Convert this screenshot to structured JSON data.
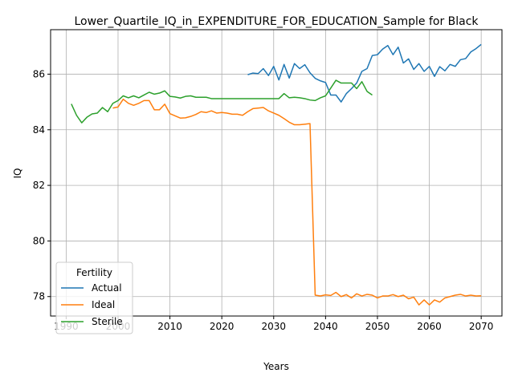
{
  "chart_data": {
    "type": "line",
    "title": "Lower_Quartile_IQ_in_EXPENDITURE_FOR_EDUCATION_Sample for Black",
    "xlabel": "Years",
    "ylabel": "IQ",
    "xlim": [
      1987,
      2074
    ],
    "ylim": [
      77.3,
      87.6
    ],
    "xticks": [
      1990,
      2000,
      2010,
      2020,
      2030,
      2040,
      2050,
      2060,
      2070
    ],
    "yticks": [
      78,
      80,
      82,
      84,
      86
    ],
    "grid": true,
    "legend": {
      "title": "Fertility",
      "placement": "lower-left"
    },
    "colors": {
      "Actual": "#1f77b4",
      "Ideal": "#ff7f0e",
      "Sterile": "#2ca02c"
    },
    "series": [
      {
        "name": "Actual",
        "x": [
          2025,
          2026,
          2027,
          2028,
          2029,
          2030,
          2031,
          2032,
          2033,
          2034,
          2035,
          2036,
          2037,
          2038,
          2039,
          2040,
          2041,
          2042,
          2043,
          2044,
          2045,
          2046,
          2047,
          2048,
          2049,
          2050,
          2051,
          2052,
          2053,
          2054,
          2055,
          2056,
          2057,
          2058,
          2059,
          2060,
          2061,
          2062,
          2063,
          2064,
          2065,
          2066,
          2067,
          2068,
          2069,
          2070
        ],
        "values": [
          85.98,
          86.04,
          86.02,
          86.2,
          85.95,
          86.28,
          85.79,
          86.35,
          85.86,
          86.38,
          86.2,
          86.34,
          86.05,
          85.85,
          85.76,
          85.7,
          85.25,
          85.25,
          85.0,
          85.3,
          85.48,
          85.68,
          86.1,
          86.2,
          86.67,
          86.7,
          86.9,
          87.03,
          86.7,
          86.97,
          86.4,
          86.55,
          86.17,
          86.38,
          86.1,
          86.28,
          85.92,
          86.27,
          86.12,
          86.35,
          86.28,
          86.52,
          86.56,
          86.8,
          86.92,
          87.07
        ]
      },
      {
        "name": "Ideal",
        "x": [
          1999,
          2000,
          2001,
          2002,
          2003,
          2004,
          2005,
          2006,
          2007,
          2008,
          2009,
          2010,
          2011,
          2012,
          2013,
          2014,
          2015,
          2016,
          2017,
          2018,
          2019,
          2020,
          2021,
          2022,
          2023,
          2024,
          2025,
          2026,
          2027,
          2028,
          2029,
          2030,
          2031,
          2032,
          2033,
          2034,
          2035,
          2036,
          2037,
          2038,
          2039,
          2040,
          2041,
          2042,
          2043,
          2044,
          2045,
          2046,
          2047,
          2048,
          2049,
          2050,
          2051,
          2052,
          2053,
          2054,
          2055,
          2056,
          2057,
          2058,
          2059,
          2060,
          2061,
          2062,
          2063,
          2064,
          2065,
          2066,
          2067,
          2068,
          2069,
          2070
        ],
        "values": [
          84.78,
          84.82,
          85.1,
          84.95,
          84.88,
          84.95,
          85.05,
          85.05,
          84.72,
          84.72,
          84.92,
          84.58,
          84.5,
          84.42,
          84.43,
          84.48,
          84.55,
          84.65,
          84.62,
          84.68,
          84.6,
          84.62,
          84.6,
          84.56,
          84.56,
          84.52,
          84.65,
          84.76,
          84.78,
          84.8,
          84.68,
          84.6,
          84.52,
          84.4,
          84.27,
          84.18,
          84.18,
          84.2,
          84.22,
          78.05,
          78.02,
          78.06,
          78.04,
          78.15,
          78.0,
          78.07,
          77.95,
          78.1,
          78.02,
          78.08,
          78.05,
          77.95,
          78.02,
          78.02,
          78.07,
          78.0,
          78.05,
          77.92,
          77.98,
          77.7,
          77.88,
          77.7,
          77.88,
          77.8,
          77.95,
          78.0,
          78.05,
          78.08,
          78.02,
          78.05,
          78.02,
          78.03
        ]
      },
      {
        "name": "Sterile",
        "x": [
          1991,
          1992,
          1993,
          1994,
          1995,
          1996,
          1997,
          1998,
          1999,
          2000,
          2001,
          2002,
          2003,
          2004,
          2005,
          2006,
          2007,
          2008,
          2009,
          2010,
          2011,
          2012,
          2013,
          2014,
          2015,
          2016,
          2017,
          2018,
          2019,
          2020,
          2021,
          2022,
          2023,
          2024,
          2025,
          2026,
          2027,
          2028,
          2029,
          2030,
          2031,
          2032,
          2033,
          2034,
          2035,
          2036,
          2037,
          2038,
          2039,
          2040,
          2041,
          2042,
          2043,
          2044,
          2045,
          2046,
          2047,
          2048,
          2049
        ],
        "values": [
          84.93,
          84.52,
          84.25,
          84.45,
          84.57,
          84.6,
          84.8,
          84.65,
          84.95,
          85.05,
          85.22,
          85.15,
          85.22,
          85.15,
          85.25,
          85.35,
          85.28,
          85.32,
          85.4,
          85.2,
          85.18,
          85.14,
          85.2,
          85.22,
          85.17,
          85.17,
          85.17,
          85.12,
          85.12,
          85.12,
          85.12,
          85.12,
          85.12,
          85.12,
          85.12,
          85.12,
          85.12,
          85.12,
          85.12,
          85.12,
          85.12,
          85.3,
          85.15,
          85.17,
          85.15,
          85.12,
          85.07,
          85.05,
          85.15,
          85.22,
          85.5,
          85.78,
          85.68,
          85.68,
          85.68,
          85.48,
          85.73,
          85.38,
          85.25
        ]
      }
    ]
  }
}
